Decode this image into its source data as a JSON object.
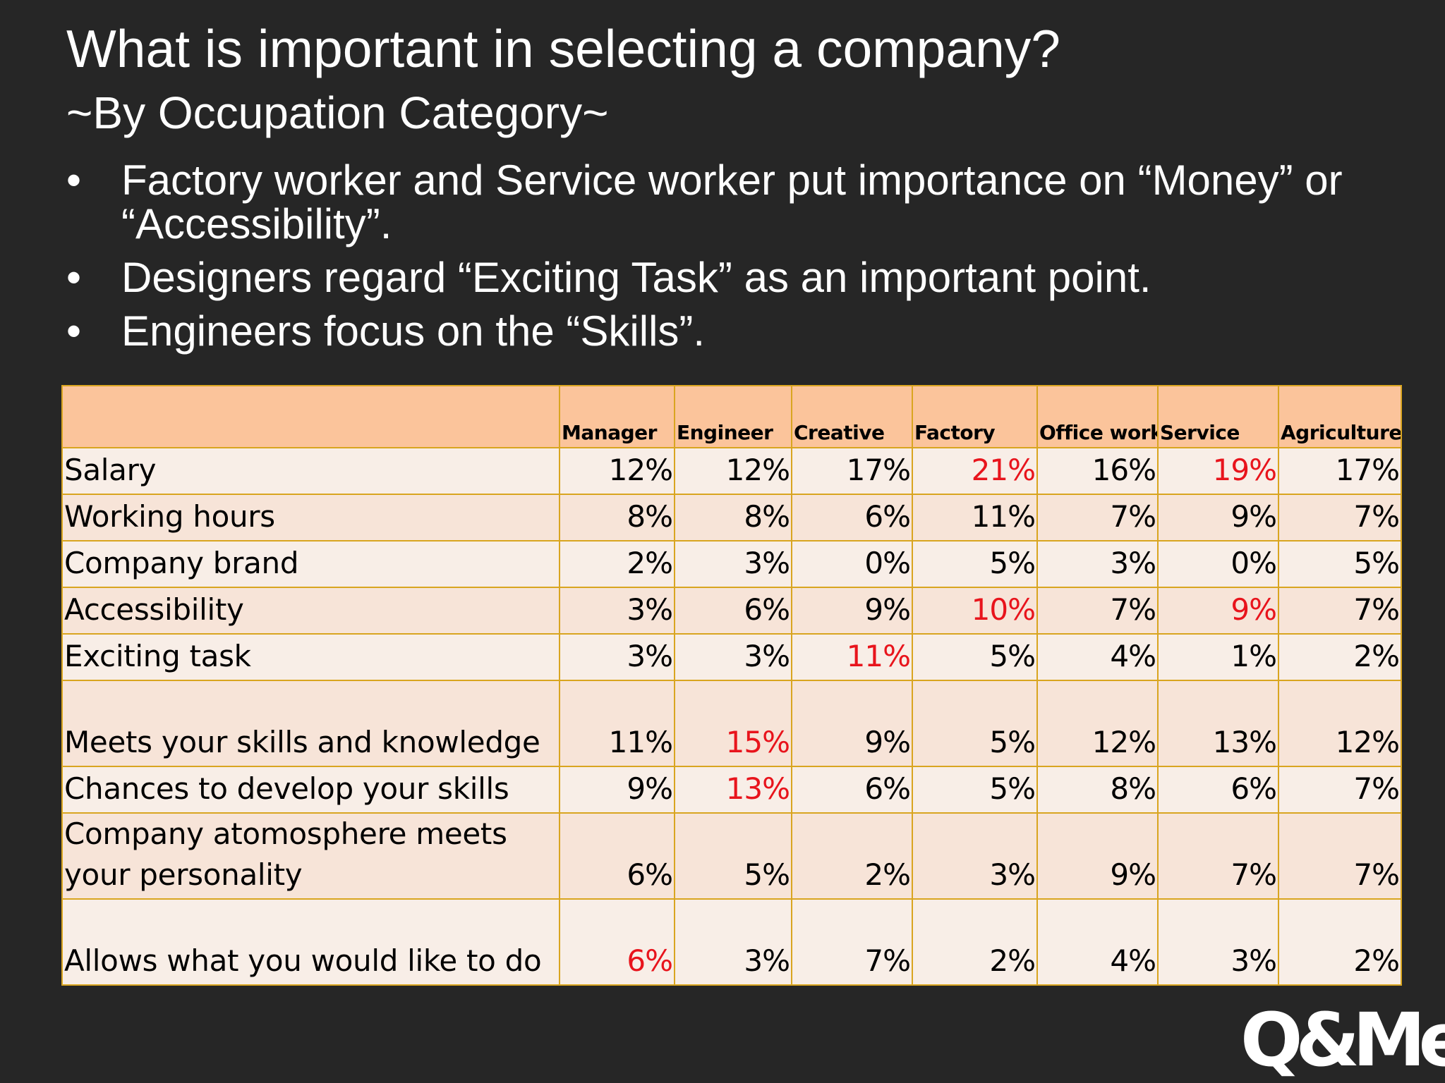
{
  "title": "What is important in selecting a company?",
  "subtitle": "~By Occupation Category~",
  "bullet_symbol": "•",
  "bullets": [
    "Factory worker and Service worker put importance on “Money” or “Accessibility”.",
    "Designers  regard “Exciting Task” as an important point.",
    "Engineers focus on the “Skills”."
  ],
  "colors": {
    "background": "#262626",
    "header_fill": "#fbc49b",
    "row_fill": "#f8eee7",
    "border": "#d9a520",
    "highlight": "#e8141c"
  },
  "table": {
    "corner": "",
    "columns": [
      "Manager",
      "Engineer",
      "Creative",
      "Factory",
      "Office work",
      "Service",
      "Agriculture"
    ],
    "rows": [
      {
        "label": "Salary",
        "values": [
          "12%",
          "12%",
          "17%",
          "21%",
          "16%",
          "19%",
          "17%"
        ],
        "highlight": [
          false,
          false,
          false,
          true,
          false,
          true,
          false
        ]
      },
      {
        "label": "Working hours",
        "values": [
          "8%",
          "8%",
          "6%",
          "11%",
          "7%",
          "9%",
          "7%"
        ],
        "highlight": [
          false,
          false,
          false,
          false,
          false,
          false,
          false
        ]
      },
      {
        "label": "Company brand",
        "values": [
          "2%",
          "3%",
          "0%",
          "5%",
          "3%",
          "0%",
          "5%"
        ],
        "highlight": [
          false,
          false,
          false,
          false,
          false,
          false,
          false
        ]
      },
      {
        "label": "Accessibility",
        "values": [
          "3%",
          "6%",
          "9%",
          "10%",
          "7%",
          "9%",
          "7%"
        ],
        "highlight": [
          false,
          false,
          false,
          true,
          false,
          true,
          false
        ]
      },
      {
        "label": "Exciting task",
        "values": [
          "3%",
          "3%",
          "11%",
          "5%",
          "4%",
          "1%",
          "2%"
        ],
        "highlight": [
          false,
          false,
          true,
          false,
          false,
          false,
          false
        ]
      },
      {
        "label": "Meets your skills and knowledge",
        "values": [
          "11%",
          "15%",
          "9%",
          "5%",
          "12%",
          "13%",
          "12%"
        ],
        "highlight": [
          false,
          true,
          false,
          false,
          false,
          false,
          false
        ]
      },
      {
        "label": "Chances to develop your skills",
        "values": [
          "9%",
          "13%",
          "6%",
          "5%",
          "8%",
          "6%",
          "7%"
        ],
        "highlight": [
          false,
          true,
          false,
          false,
          false,
          false,
          false
        ]
      },
      {
        "label": "Company atomosphere meets your personality",
        "values": [
          "6%",
          "5%",
          "2%",
          "3%",
          "9%",
          "7%",
          "7%"
        ],
        "highlight": [
          false,
          false,
          false,
          false,
          false,
          false,
          false
        ]
      },
      {
        "label": "Allows what you would like to do",
        "values": [
          "6%",
          "3%",
          "7%",
          "2%",
          "4%",
          "3%",
          "2%"
        ],
        "highlight": [
          true,
          false,
          false,
          false,
          false,
          false,
          false
        ]
      }
    ]
  },
  "logo": {
    "text": "Q&Me"
  }
}
